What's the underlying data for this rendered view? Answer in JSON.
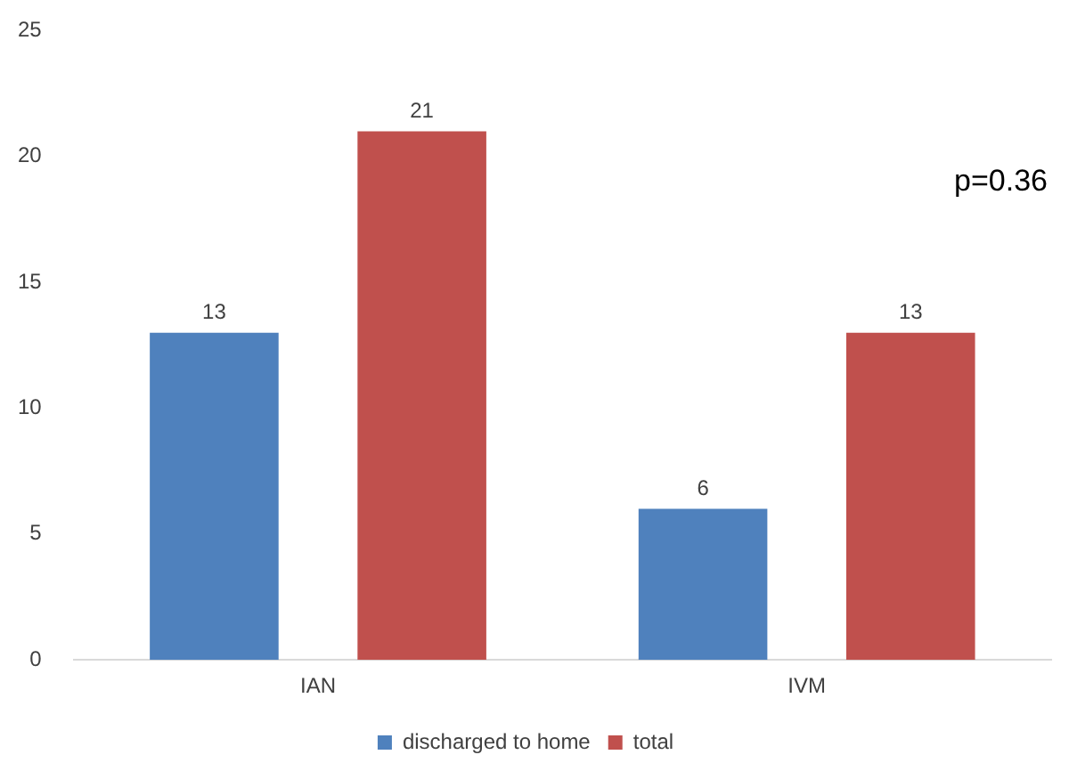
{
  "chart_data": {
    "type": "bar",
    "categories": [
      "IAN",
      "IVM"
    ],
    "series": [
      {
        "name": "discharged to home",
        "color": "#4f81bd",
        "values": [
          13,
          6
        ]
      },
      {
        "name": "total",
        "color": "#c0504d",
        "values": [
          21,
          13
        ]
      }
    ],
    "ylim": [
      0,
      25
    ],
    "yticks": [
      0,
      5,
      10,
      15,
      20,
      25
    ],
    "grid": false,
    "legend": "bottom",
    "data_labels": true,
    "annotations": [
      "p=0.36"
    ]
  }
}
